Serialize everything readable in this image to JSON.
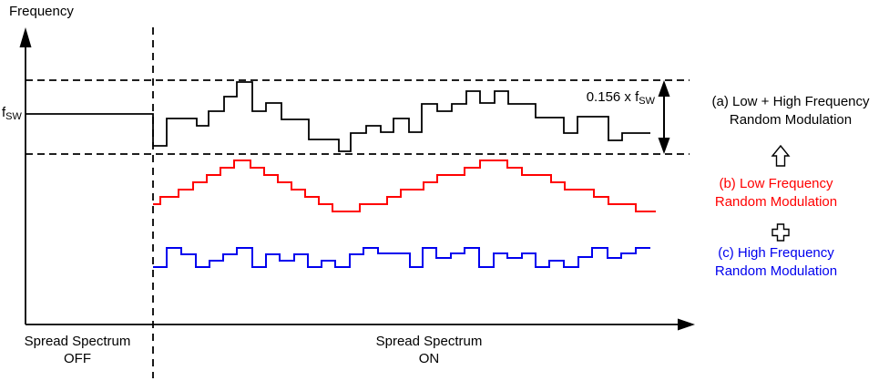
{
  "colors": {
    "black": "#000000",
    "red": "#ff0000",
    "blue": "#0000ee",
    "background": "#ffffff"
  },
  "axis": {
    "y_label": "Frequency",
    "fsw_main": "f",
    "fsw_sub": "SW"
  },
  "band": {
    "label_prefix": "0.156 x f",
    "label_sub": "SW"
  },
  "bottom_labels": {
    "off_line1": "Spread Spectrum",
    "off_line2": "OFF",
    "on_line1": "Spread Spectrum",
    "on_line2": "ON"
  },
  "legend": {
    "a_line1": "(a) Low + High Frequency",
    "a_line2": "Random Modulation",
    "combine1_icon": "up-arrow",
    "b_line1": "(b) Low Frequency",
    "b_line2": "Random Modulation",
    "combine2_icon": "plus",
    "c_line1": "(c) High Frequency",
    "c_line2": "Random Modulation"
  },
  "waveforms": {
    "black_low_plus_high": {
      "description": "Combined low + high frequency random modulation around fsw, bounded by 0.156 x fsw band",
      "points": [
        [
          28,
          125
        ],
        [
          168,
          125
        ],
        [
          168,
          160
        ],
        [
          183,
          160
        ],
        [
          183,
          130
        ],
        [
          216,
          130
        ],
        [
          216,
          138
        ],
        [
          229,
          138
        ],
        [
          229,
          122
        ],
        [
          246,
          122
        ],
        [
          246,
          106
        ],
        [
          260,
          106
        ],
        [
          260,
          90
        ],
        [
          277,
          90
        ],
        [
          277,
          122
        ],
        [
          292,
          122
        ],
        [
          292,
          113
        ],
        [
          309,
          113
        ],
        [
          309,
          131
        ],
        [
          339,
          131
        ],
        [
          339,
          153
        ],
        [
          372,
          153
        ],
        [
          372,
          166
        ],
        [
          385,
          166
        ],
        [
          385,
          146
        ],
        [
          402,
          146
        ],
        [
          402,
          138
        ],
        [
          418,
          138
        ],
        [
          418,
          145
        ],
        [
          432,
          145
        ],
        [
          432,
          130
        ],
        [
          449,
          130
        ],
        [
          449,
          145
        ],
        [
          463,
          145
        ],
        [
          463,
          114
        ],
        [
          480,
          114
        ],
        [
          480,
          122
        ],
        [
          496,
          122
        ],
        [
          496,
          114
        ],
        [
          512,
          114
        ],
        [
          512,
          100
        ],
        [
          527,
          100
        ],
        [
          527,
          113
        ],
        [
          543,
          113
        ],
        [
          543,
          100
        ],
        [
          558,
          100
        ],
        [
          558,
          114
        ],
        [
          588,
          114
        ],
        [
          588,
          129
        ],
        [
          619,
          129
        ],
        [
          619,
          146
        ],
        [
          634,
          146
        ],
        [
          634,
          128
        ],
        [
          668,
          128
        ],
        [
          668,
          154
        ],
        [
          683,
          154
        ],
        [
          683,
          146
        ],
        [
          714,
          146
        ]
      ]
    },
    "red_low_frequency": {
      "description": "Low frequency random modulation (staircase triangle wave)",
      "points": [
        [
          168,
          224
        ],
        [
          176,
          224
        ],
        [
          176,
          216
        ],
        [
          196,
          216
        ],
        [
          196,
          208
        ],
        [
          212,
          208
        ],
        [
          212,
          200
        ],
        [
          227,
          200
        ],
        [
          227,
          192
        ],
        [
          242,
          192
        ],
        [
          242,
          184
        ],
        [
          257,
          184
        ],
        [
          257,
          176
        ],
        [
          275,
          176
        ],
        [
          275,
          184
        ],
        [
          290,
          184
        ],
        [
          290,
          192
        ],
        [
          305,
          192
        ],
        [
          305,
          200
        ],
        [
          320,
          200
        ],
        [
          320,
          208
        ],
        [
          335,
          208
        ],
        [
          335,
          216
        ],
        [
          350,
          216
        ],
        [
          350,
          224
        ],
        [
          365,
          224
        ],
        [
          365,
          232
        ],
        [
          395,
          232
        ],
        [
          395,
          224
        ],
        [
          425,
          224
        ],
        [
          425,
          216
        ],
        [
          440,
          216
        ],
        [
          440,
          208
        ],
        [
          465,
          208
        ],
        [
          465,
          200
        ],
        [
          480,
          200
        ],
        [
          480,
          192
        ],
        [
          510,
          192
        ],
        [
          510,
          184
        ],
        [
          527,
          184
        ],
        [
          527,
          176
        ],
        [
          557,
          176
        ],
        [
          557,
          184
        ],
        [
          573,
          184
        ],
        [
          573,
          192
        ],
        [
          605,
          192
        ],
        [
          605,
          200
        ],
        [
          620,
          200
        ],
        [
          620,
          208
        ],
        [
          652,
          208
        ],
        [
          652,
          216
        ],
        [
          668,
          216
        ],
        [
          668,
          224
        ],
        [
          698,
          224
        ],
        [
          698,
          232
        ],
        [
          720,
          232
        ]
      ]
    },
    "blue_high_frequency": {
      "description": "High frequency random modulation (fast random steps)",
      "points": [
        [
          168,
          293
        ],
        [
          183,
          293
        ],
        [
          183,
          272
        ],
        [
          199,
          272
        ],
        [
          199,
          279
        ],
        [
          215,
          279
        ],
        [
          215,
          293
        ],
        [
          230,
          293
        ],
        [
          230,
          286
        ],
        [
          245,
          286
        ],
        [
          245,
          279
        ],
        [
          260,
          279
        ],
        [
          260,
          272
        ],
        [
          277,
          272
        ],
        [
          277,
          293
        ],
        [
          292,
          293
        ],
        [
          292,
          279
        ],
        [
          307,
          279
        ],
        [
          307,
          286
        ],
        [
          323,
          286
        ],
        [
          323,
          279
        ],
        [
          338,
          279
        ],
        [
          338,
          293
        ],
        [
          353,
          293
        ],
        [
          353,
          286
        ],
        [
          368,
          286
        ],
        [
          368,
          293
        ],
        [
          384,
          293
        ],
        [
          384,
          279
        ],
        [
          399,
          279
        ],
        [
          399,
          272
        ],
        [
          415,
          272
        ],
        [
          415,
          278
        ],
        [
          450,
          278
        ],
        [
          450,
          293
        ],
        [
          464,
          293
        ],
        [
          464,
          272
        ],
        [
          479,
          272
        ],
        [
          479,
          283
        ],
        [
          495,
          283
        ],
        [
          495,
          278
        ],
        [
          510,
          278
        ],
        [
          510,
          272
        ],
        [
          526,
          272
        ],
        [
          526,
          293
        ],
        [
          542,
          293
        ],
        [
          542,
          278
        ],
        [
          557,
          278
        ],
        [
          557,
          283
        ],
        [
          573,
          283
        ],
        [
          573,
          278
        ],
        [
          588,
          278
        ],
        [
          588,
          293
        ],
        [
          603,
          293
        ],
        [
          603,
          286
        ],
        [
          619,
          286
        ],
        [
          619,
          293
        ],
        [
          635,
          293
        ],
        [
          635,
          282
        ],
        [
          650,
          282
        ],
        [
          650,
          272
        ],
        [
          667,
          272
        ],
        [
          667,
          283
        ],
        [
          682,
          283
        ],
        [
          682,
          278
        ],
        [
          698,
          278
        ],
        [
          698,
          272
        ],
        [
          714,
          272
        ]
      ]
    }
  }
}
